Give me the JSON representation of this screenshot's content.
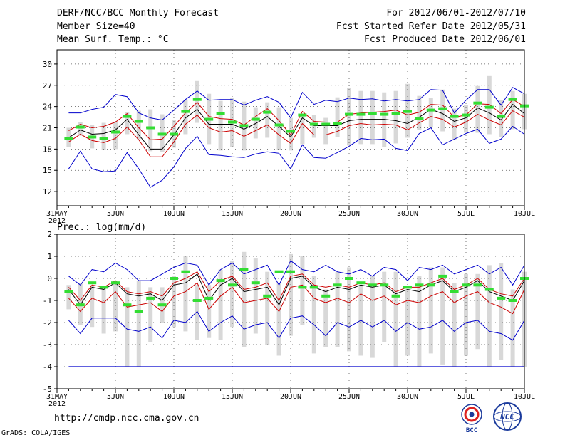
{
  "header": {
    "title": "DERF/NCC/BCC Monthly Forecast",
    "member_size": "Member Size=40",
    "variable1": "Mean Surf. Temp.: °C",
    "forecast_period": "For 2012/06/01-2012/07/10",
    "started_date": "Fcst Started Refer Date 2012/05/31",
    "produced_date": "Fcst Produced Date 2012/06/01"
  },
  "footer": {
    "url": "http://cmdp.ncc.cma.gov.cn",
    "grads": "GrADS: COLA/IGES",
    "logo_bcc": "BCC",
    "logo_ncc": "NCC"
  },
  "colors": {
    "min_max": "#0000cc",
    "spread": "#cc0000",
    "mean": "#000000",
    "box": "#d8d8d8",
    "median": "#33dd33"
  },
  "chart_data": [
    {
      "type": "line",
      "title": "Mean Surf. Temp.: °C",
      "x_tick_labels": [
        "31MAY",
        "5JUN",
        "10JUN",
        "15JUN",
        "20JUN",
        "25JUN",
        "30JUN",
        "5JUL",
        "10JUL"
      ],
      "x_tick_days": [
        0,
        5,
        10,
        15,
        20,
        25,
        30,
        35,
        40
      ],
      "x_year_label": "2012",
      "days": [
        0,
        1,
        2,
        3,
        4,
        5,
        6,
        7,
        8,
        9,
        10,
        11,
        12,
        13,
        14,
        15,
        16,
        17,
        18,
        19,
        20,
        21,
        22,
        23,
        24,
        25,
        26,
        27,
        28,
        29,
        30,
        31,
        32,
        33,
        34,
        35,
        36,
        37,
        38,
        39,
        40
      ],
      "ylim": [
        10,
        32
      ],
      "yticks": [
        12,
        15,
        18,
        21,
        24,
        27,
        30
      ],
      "series": [
        {
          "name": "max",
          "values": [
            null,
            23.1,
            23.1,
            23.6,
            23.9,
            25.7,
            25.4,
            23.1,
            22.4,
            22.1,
            23.5,
            25.0,
            26.2,
            24.9,
            25.0,
            25.0,
            24.2,
            24.9,
            25.4,
            24.6,
            22.4,
            26.0,
            24.3,
            24.9,
            24.7,
            25.2,
            25.0,
            25.1,
            24.8,
            25.0,
            24.8,
            25.0,
            26.4,
            26.3,
            23.1,
            24.9,
            26.4,
            26.4,
            24.2,
            26.7,
            25.8
          ]
        },
        {
          "name": "upper",
          "values": [
            null,
            20.6,
            21.5,
            21.0,
            21.2,
            21.8,
            23.0,
            21.0,
            19.3,
            19.4,
            21.2,
            23.1,
            24.6,
            22.6,
            22.3,
            22.2,
            21.4,
            22.6,
            23.7,
            22.0,
            20.0,
            23.3,
            21.9,
            21.8,
            21.8,
            22.9,
            23.1,
            23.2,
            23.3,
            23.5,
            22.8,
            23.2,
            24.3,
            24.2,
            22.5,
            22.8,
            24.4,
            24.3,
            23.0,
            25.0,
            24.0
          ]
        },
        {
          "name": "mean",
          "values": [
            null,
            19.6,
            20.7,
            20.1,
            20.2,
            20.7,
            22.2,
            20.0,
            18.0,
            18.0,
            20.0,
            22.4,
            23.6,
            21.5,
            21.5,
            21.5,
            20.8,
            21.6,
            22.6,
            21.2,
            19.7,
            22.4,
            21.3,
            21.3,
            21.3,
            22.0,
            22.2,
            22.2,
            22.2,
            22.0,
            21.6,
            22.5,
            23.6,
            23.0,
            21.9,
            22.4,
            23.8,
            23.1,
            22.1,
            24.3,
            23.0
          ]
        },
        {
          "name": "lower",
          "values": [
            null,
            19.0,
            20.1,
            19.2,
            18.9,
            19.5,
            21.1,
            19.3,
            16.9,
            16.9,
            19.0,
            21.5,
            22.8,
            21.0,
            20.4,
            20.6,
            19.8,
            20.6,
            21.4,
            20.0,
            18.8,
            21.6,
            20.0,
            20.0,
            20.5,
            21.3,
            21.6,
            21.4,
            21.5,
            21.4,
            20.7,
            21.7,
            22.6,
            22.2,
            21.1,
            21.8,
            22.9,
            22.1,
            21.4,
            23.4,
            22.5
          ]
        },
        {
          "name": "min",
          "values": [
            null,
            15.2,
            17.7,
            15.2,
            14.8,
            14.9,
            17.5,
            15.2,
            12.6,
            13.6,
            15.5,
            18.1,
            19.8,
            17.2,
            17.1,
            16.9,
            16.8,
            17.3,
            17.6,
            17.4,
            15.2,
            18.6,
            16.8,
            16.7,
            17.5,
            18.4,
            19.5,
            19.3,
            19.4,
            18.1,
            17.8,
            20.2,
            21.0,
            18.6,
            19.4,
            20.2,
            20.8,
            18.8,
            19.4,
            21.2,
            20.1
          ]
        },
        {
          "name": "box_top",
          "values": [
            null,
            21.0,
            21.8,
            21.4,
            21.7,
            21.8,
            23.2,
            23.4,
            23.6,
            22.9,
            22.1,
            24.9,
            27.6,
            25.8,
            24.8,
            25.2,
            24.7,
            23.9,
            24.6,
            23.9,
            22.4,
            22.8,
            22.8,
            22.4,
            25.3,
            26.6,
            26.2,
            26.2,
            26.0,
            26.2,
            27.2,
            25.5,
            25.2,
            26.4,
            23.7,
            24.2,
            26.9,
            28.3,
            24.9,
            26.2,
            25.8
          ]
        },
        {
          "name": "box_bottom",
          "values": [
            null,
            18.3,
            19.9,
            18.1,
            17.9,
            18.0,
            20.1,
            19.4,
            17.7,
            17.6,
            18.2,
            20.1,
            21.7,
            18.7,
            17.8,
            18.3,
            17.8,
            19.5,
            19.6,
            17.9,
            17.8,
            18.7,
            19.6,
            18.7,
            19.7,
            18.5,
            18.7,
            18.7,
            18.3,
            18.8,
            19.6,
            20.7,
            21.1,
            20.5,
            19.3,
            20.3,
            20.3,
            20.1,
            19.7,
            20.8,
            20.8
          ]
        },
        {
          "name": "median",
          "values": [
            null,
            19.5,
            21.1,
            19.7,
            19.5,
            20.4,
            22.6,
            21.9,
            21.0,
            20.1,
            20.1,
            23.3,
            25.0,
            22.2,
            23.0,
            21.8,
            21.3,
            22.2,
            23.2,
            21.4,
            20.5,
            22.8,
            21.5,
            21.5,
            21.6,
            22.9,
            22.9,
            23.0,
            22.9,
            23.0,
            23.3,
            22.3,
            23.5,
            23.7,
            22.6,
            22.8,
            24.5,
            23.9,
            22.6,
            25.0,
            24.1
          ]
        }
      ]
    },
    {
      "type": "line",
      "title": "Prec.: log(mm/d)",
      "x_tick_labels": [
        "31MAY",
        "5JUN",
        "10JUN",
        "15JUN",
        "20JUN",
        "25JUN",
        "30JUN",
        "5JUL",
        "10JUL"
      ],
      "x_tick_days": [
        0,
        5,
        10,
        15,
        20,
        25,
        30,
        35,
        40
      ],
      "x_year_label": "2012",
      "days": [
        0,
        1,
        2,
        3,
        4,
        5,
        6,
        7,
        8,
        9,
        10,
        11,
        12,
        13,
        14,
        15,
        16,
        17,
        18,
        19,
        20,
        21,
        22,
        23,
        24,
        25,
        26,
        27,
        28,
        29,
        30,
        31,
        32,
        33,
        34,
        35,
        36,
        37,
        38,
        39,
        40
      ],
      "ylim": [
        -5,
        2
      ],
      "yticks": [
        -5,
        -4,
        -3,
        -2,
        -1,
        0,
        1,
        2
      ],
      "series": [
        {
          "name": "max",
          "values": [
            null,
            0.1,
            -0.3,
            0.4,
            0.3,
            0.7,
            0.4,
            -0.1,
            -0.1,
            0.2,
            0.5,
            0.7,
            0.6,
            -0.3,
            0.4,
            0.7,
            0.2,
            0.4,
            0.6,
            -0.3,
            0.8,
            0.4,
            0.3,
            0.6,
            0.3,
            0.2,
            0.4,
            0.1,
            0.5,
            0.4,
            -0.1,
            0.5,
            0.4,
            0.6,
            0.2,
            0.4,
            0.6,
            0.2,
            0.5,
            -0.3,
            0.6
          ]
        },
        {
          "name": "upper",
          "values": [
            null,
            -0.4,
            -1.0,
            -0.3,
            -0.4,
            -0.1,
            -0.6,
            -0.7,
            -0.6,
            -0.8,
            -0.2,
            0.0,
            0.3,
            -0.6,
            -0.1,
            0.1,
            -0.5,
            -0.4,
            -0.2,
            -1.0,
            0.1,
            0.2,
            -0.3,
            -0.4,
            -0.3,
            -0.4,
            -0.2,
            -0.3,
            -0.2,
            -0.6,
            -0.4,
            -0.4,
            -0.2,
            0.0,
            -0.5,
            -0.3,
            0.0,
            -0.5,
            -0.7,
            -0.8,
            0.0
          ]
        },
        {
          "name": "mean",
          "values": [
            null,
            -0.5,
            -1.2,
            -0.4,
            -0.5,
            -0.2,
            -0.7,
            -0.8,
            -0.7,
            -1.0,
            -0.3,
            -0.2,
            0.2,
            -1.0,
            -0.3,
            0.0,
            -0.6,
            -0.5,
            -0.4,
            -1.2,
            0.0,
            0.1,
            -0.4,
            -0.6,
            -0.4,
            -0.5,
            -0.3,
            -0.4,
            -0.3,
            -0.7,
            -0.5,
            -0.6,
            -0.3,
            -0.1,
            -0.6,
            -0.4,
            -0.1,
            -0.6,
            -0.8,
            -1.0,
            -0.1
          ]
        },
        {
          "name": "lower",
          "values": [
            null,
            -0.9,
            -1.5,
            -0.9,
            -1.1,
            -0.6,
            -1.3,
            -1.2,
            -1.1,
            -1.5,
            -0.8,
            -0.6,
            -0.2,
            -1.4,
            -0.8,
            -0.4,
            -1.1,
            -1.0,
            -0.9,
            -1.5,
            -0.4,
            -0.3,
            -0.9,
            -1.1,
            -0.9,
            -1.1,
            -0.7,
            -1.0,
            -0.8,
            -1.2,
            -1.0,
            -1.1,
            -0.8,
            -0.6,
            -1.1,
            -0.8,
            -0.6,
            -1.1,
            -1.3,
            -1.6,
            -0.5
          ]
        },
        {
          "name": "min",
          "values": [
            null,
            -1.9,
            -2.5,
            -1.8,
            -1.8,
            -1.8,
            -2.3,
            -2.4,
            -2.2,
            -2.7,
            -1.9,
            -2.0,
            -1.5,
            -2.4,
            -2.0,
            -1.7,
            -2.3,
            -2.1,
            -2.0,
            -2.7,
            -1.8,
            -1.7,
            -2.1,
            -2.6,
            -2.0,
            -2.2,
            -1.9,
            -2.2,
            -1.9,
            -2.4,
            -2.0,
            -2.3,
            -2.2,
            -1.9,
            -2.4,
            -2.0,
            -1.9,
            -2.4,
            -2.5,
            -2.8,
            -1.9
          ]
        },
        {
          "name": "box_top",
          "values": [
            null,
            -0.3,
            -0.2,
            -0.3,
            -0.4,
            -0.1,
            -0.4,
            -0.1,
            -0.4,
            -0.4,
            0.1,
            1.0,
            -0.3,
            -0.3,
            0.4,
            0.8,
            1.2,
            0.9,
            0.3,
            -0.2,
            1.1,
            1.0,
            0.1,
            -0.5,
            0.3,
            0.5,
            -0.3,
            0.1,
            0.3,
            0.3,
            -0.5,
            0.1,
            0.5,
            0.5,
            -0.2,
            0.2,
            0.2,
            0.6,
            0.7,
            -0.5,
            0.3
          ]
        },
        {
          "name": "box_bottom",
          "values": [
            null,
            -1.4,
            -2.1,
            -2.2,
            -2.5,
            -2.4,
            -4.0,
            -4.0,
            -2.9,
            -2.0,
            -2.2,
            -2.4,
            -2.8,
            -2.7,
            -2.8,
            -2.2,
            -3.1,
            -2.5,
            -3.0,
            -3.5,
            -2.6,
            -2.1,
            -3.4,
            -3.1,
            -3.1,
            -3.3,
            -3.5,
            -3.6,
            -2.9,
            -4.0,
            -3.5,
            -4.0,
            -3.4,
            -3.9,
            -4.0,
            -3.5,
            -3.2,
            -4.0,
            -3.7,
            -4.0,
            -4.0
          ]
        },
        {
          "name": "median",
          "values": [
            null,
            -0.6,
            -1.2,
            -0.2,
            -0.4,
            -0.2,
            -1.2,
            -1.5,
            -0.9,
            -1.2,
            0.0,
            0.3,
            -1.0,
            -0.9,
            -0.1,
            -0.3,
            0.4,
            -0.2,
            -0.8,
            0.3,
            0.3,
            -0.4,
            -0.4,
            -0.8,
            -0.3,
            0.0,
            -0.2,
            -0.3,
            -0.3,
            -0.8,
            -0.4,
            -0.3,
            -0.3,
            0.1,
            -0.6,
            -0.3,
            -0.3,
            -0.5,
            -0.9,
            -1.0,
            0.0
          ]
        },
        {
          "name": "floor",
          "values": [
            null,
            -4.0,
            -4.0,
            -4.0,
            -4.0,
            -4.0,
            -4.0,
            -4.0,
            -4.0,
            -4.0,
            -4.0,
            -4.0,
            -4.0,
            -4.0,
            -4.0,
            -4.0,
            -4.0,
            -4.0,
            -4.0,
            -4.0,
            -4.0,
            -4.0,
            -4.0,
            -4.0,
            -4.0,
            -4.0,
            -4.0,
            -4.0,
            -4.0,
            -4.0,
            -4.0,
            -4.0,
            -4.0,
            -4.0,
            -4.0,
            -4.0,
            -4.0,
            -4.0,
            -4.0,
            -4.0,
            -4.0
          ]
        }
      ]
    }
  ]
}
